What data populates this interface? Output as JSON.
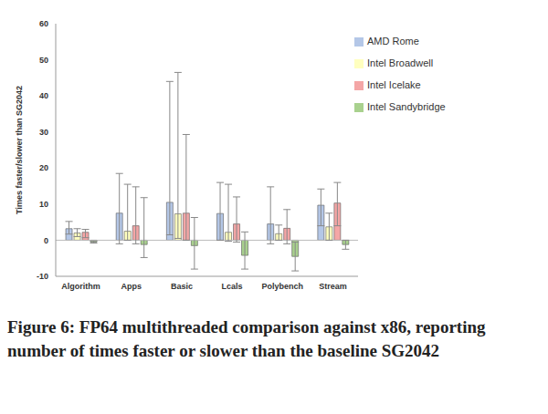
{
  "chart_data": {
    "type": "bar",
    "title": "Figure 6: FP64 multithreaded comparison against x86, reporting number of times faster or slower than the baseline SG2042",
    "y_label": "Times faster/slower than SG2042",
    "categories": [
      "Algorithm",
      "Apps",
      "Basic",
      "Lcals",
      "Polybench",
      "Stream"
    ],
    "series": [
      {
        "name": "AMD Rome",
        "color": "#b4c7e7",
        "values": [
          3.2,
          7.5,
          10.5,
          7.4,
          4.5,
          9.7
        ],
        "errors": [
          [
            1.5,
            2.0
          ],
          [
            8.5,
            11.0
          ],
          [
            9.0,
            33.5
          ],
          [
            7.4,
            8.6
          ],
          [
            5.5,
            10.3
          ],
          [
            5.7,
            4.5
          ]
        ]
      },
      {
        "name": "Intel Broadwell",
        "color": "#ffffbf",
        "values": [
          2.0,
          2.5,
          7.3,
          2.2,
          1.8,
          3.7
        ],
        "errors": [
          [
            1.0,
            1.2
          ],
          [
            2.5,
            13.0
          ],
          [
            6.8,
            39.2
          ],
          [
            2.5,
            13.3
          ],
          [
            1.8,
            2.4
          ],
          [
            3.7,
            3.8
          ]
        ]
      },
      {
        "name": "Intel Icelake",
        "color": "#f4a6a6",
        "values": [
          2.2,
          4.0,
          7.5,
          4.5,
          3.3,
          10.3
        ],
        "errors": [
          [
            1.5,
            0.8
          ],
          [
            5.0,
            10.8
          ],
          [
            7.5,
            21.8
          ],
          [
            5.0,
            7.5
          ],
          [
            4.3,
            5.2
          ],
          [
            6.3,
            5.7
          ]
        ]
      },
      {
        "name": "Intel Sandybridge",
        "color": "#a9d18e",
        "values": [
          -0.5,
          -1.2,
          -1.5,
          -4.2,
          -4.5,
          -1.2
        ],
        "errors": [
          [
            0.3,
            0.3
          ],
          [
            3.6,
            13.0
          ],
          [
            6.5,
            7.8
          ],
          [
            3.8,
            6.5
          ],
          [
            4.0,
            4.0
          ],
          [
            1.3,
            1.2
          ]
        ]
      }
    ],
    "ylim": [
      -10,
      60
    ],
    "yticks": [
      -10,
      0,
      10,
      20,
      30,
      40,
      50,
      60
    ],
    "legend": "upper right",
    "grid": false
  }
}
